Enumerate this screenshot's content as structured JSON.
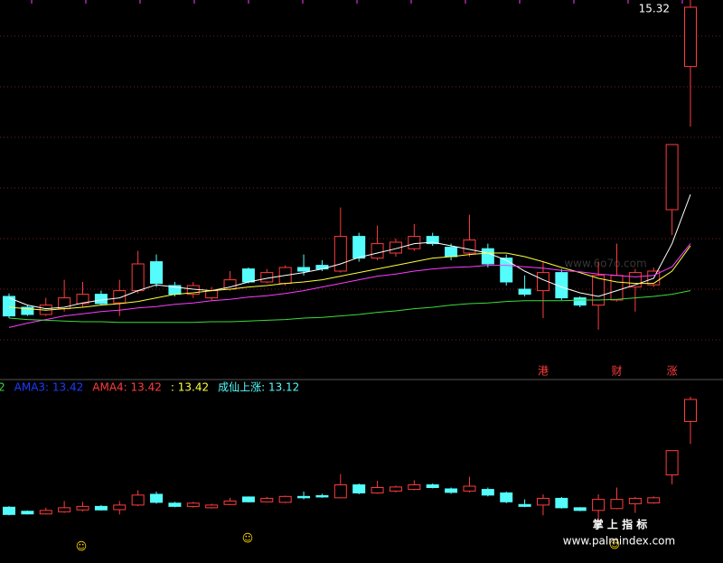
{
  "chart_data": {
    "type": "candlestick",
    "ylim": [
      10.17,
      15.42
    ],
    "indicator_ylim": [
      9.35,
      15.89
    ],
    "up_color": "#ff3c3c",
    "down_color": "#54fcfc",
    "open": [
      11.32,
      11.17,
      11.07,
      11.15,
      11.22,
      11.35,
      11.23,
      11.4,
      11.8,
      11.47,
      11.35,
      11.3,
      11.42,
      11.7,
      11.52,
      11.5,
      11.72,
      11.75,
      11.67,
      12.15,
      11.85,
      11.92,
      11.98,
      12.15,
      12.0,
      11.92,
      11.98,
      11.85,
      11.42,
      11.4,
      11.65,
      11.3,
      11.2,
      11.27,
      11.45,
      11.48,
      12.52,
      14.5
    ],
    "high": [
      11.36,
      11.2,
      11.3,
      11.55,
      11.52,
      11.4,
      11.55,
      11.95,
      11.9,
      11.52,
      11.52,
      11.45,
      11.67,
      11.72,
      11.7,
      11.75,
      11.9,
      11.82,
      12.55,
      12.2,
      12.3,
      12.12,
      12.32,
      12.2,
      12.05,
      12.45,
      12.05,
      11.9,
      11.61,
      11.8,
      11.7,
      11.32,
      11.8,
      12.05,
      11.7,
      11.72,
      13.42,
      15.42
    ],
    "low": [
      11.02,
      11.05,
      11.05,
      11.11,
      11.17,
      11.2,
      11.05,
      11.36,
      11.45,
      11.32,
      11.3,
      11.27,
      11.4,
      11.5,
      11.5,
      11.47,
      11.61,
      11.67,
      11.65,
      11.8,
      11.82,
      11.87,
      11.95,
      12.02,
      11.82,
      11.87,
      11.72,
      11.47,
      11.32,
      11.02,
      11.27,
      11.17,
      10.86,
      11.25,
      11.11,
      11.45,
      12.17,
      13.67
    ],
    "close": [
      11.05,
      11.07,
      11.2,
      11.3,
      11.35,
      11.22,
      11.4,
      11.77,
      11.5,
      11.35,
      11.47,
      11.4,
      11.55,
      11.52,
      11.65,
      11.72,
      11.67,
      11.7,
      12.15,
      11.85,
      12.05,
      12.07,
      12.15,
      12.05,
      11.87,
      12.1,
      11.77,
      11.52,
      11.35,
      11.65,
      11.3,
      11.2,
      11.61,
      11.61,
      11.65,
      11.67,
      13.42,
      15.32
    ],
    "series": [
      {
        "color": "#ffffff",
        "values": [
          11.3,
          11.2,
          11.15,
          11.17,
          11.23,
          11.27,
          11.3,
          11.4,
          11.48,
          11.45,
          11.42,
          11.4,
          11.45,
          11.52,
          11.57,
          11.61,
          11.65,
          11.7,
          11.77,
          11.86,
          11.92,
          11.98,
          12.05,
          12.07,
          12.02,
          11.97,
          11.92,
          11.82,
          11.67,
          11.55,
          11.45,
          11.37,
          11.32,
          11.4,
          11.48,
          11.57,
          12.05,
          12.73
        ]
      },
      {
        "color": "#ffff3c",
        "values": [
          11.17,
          11.15,
          11.13,
          11.15,
          11.17,
          11.2,
          11.22,
          11.25,
          11.3,
          11.35,
          11.37,
          11.4,
          11.42,
          11.45,
          11.47,
          11.5,
          11.52,
          11.55,
          11.6,
          11.65,
          11.7,
          11.75,
          11.8,
          11.85,
          11.87,
          11.9,
          11.92,
          11.92,
          11.87,
          11.8,
          11.72,
          11.65,
          11.57,
          11.52,
          11.5,
          11.5,
          11.67,
          12.02
        ]
      },
      {
        "color": "#ff3cff",
        "values": [
          10.89,
          10.95,
          11.0,
          11.05,
          11.08,
          11.11,
          11.13,
          11.16,
          11.18,
          11.21,
          11.23,
          11.26,
          11.28,
          11.31,
          11.33,
          11.36,
          11.4,
          11.45,
          11.5,
          11.55,
          11.6,
          11.63,
          11.67,
          11.7,
          11.72,
          11.73,
          11.75,
          11.75,
          11.73,
          11.71,
          11.68,
          11.66,
          11.63,
          11.61,
          11.59,
          11.61,
          11.73,
          12.05
        ]
      },
      {
        "color": "#3cdc3c",
        "values": [
          11.02,
          11.0,
          10.99,
          10.98,
          10.97,
          10.97,
          10.96,
          10.96,
          10.96,
          10.96,
          10.96,
          10.97,
          10.97,
          10.98,
          10.99,
          11.0,
          11.02,
          11.03,
          11.05,
          11.07,
          11.1,
          11.12,
          11.15,
          11.17,
          11.2,
          11.22,
          11.23,
          11.25,
          11.26,
          11.26,
          11.26,
          11.27,
          11.27,
          11.28,
          11.3,
          11.32,
          11.35,
          11.4
        ]
      }
    ],
    "event_labels": [
      null,
      null,
      null,
      null,
      null,
      null,
      null,
      null,
      null,
      null,
      null,
      null,
      null,
      null,
      null,
      null,
      null,
      null,
      null,
      null,
      null,
      null,
      null,
      null,
      null,
      null,
      null,
      null,
      null,
      "港",
      null,
      null,
      null,
      "财",
      null,
      null,
      "涨",
      null
    ],
    "indicator_labels": [
      "2",
      "AMA3: 13.42",
      "AMA4: 13.42",
      ": 13.42",
      "成仙上涨: 13.12"
    ],
    "indicator_label_colors": [
      "#3cdc3c",
      "#1a3cff",
      "#ff3c3c",
      "#ffff3c",
      "#54fcfc"
    ],
    "watermarks": [
      "www.6o7o.com",
      "掌 上 指 标",
      "www.palmindex.com"
    ]
  }
}
